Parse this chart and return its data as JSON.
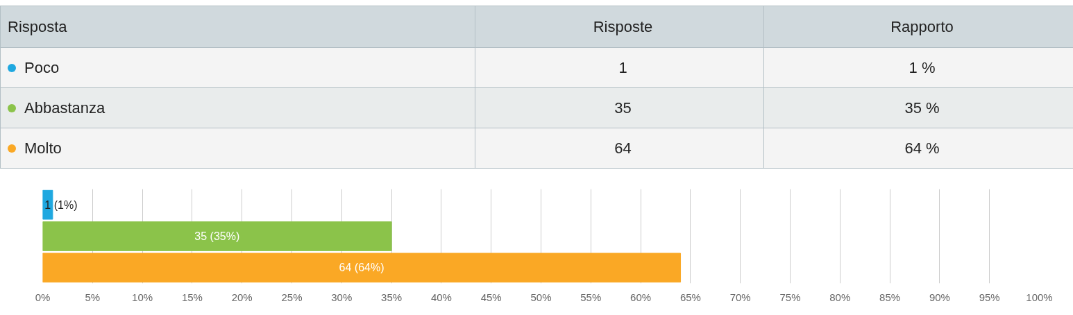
{
  "chart_data": {
    "type": "bar",
    "orientation": "horizontal",
    "categories": [
      null,
      null,
      null
    ],
    "values": [
      1,
      35,
      64
    ],
    "colors": [
      "#1fa8e0",
      "#8bc34a",
      "#faa825"
    ],
    "value_labels": [
      "1 (1%)",
      "35 (35%)",
      "64 (64%)"
    ],
    "xlim": [
      0,
      100
    ],
    "xticks": [
      {
        "value": 0,
        "label": "0%"
      },
      {
        "value": 5,
        "label": "5%"
      },
      {
        "value": 10,
        "label": "10%"
      },
      {
        "value": 15,
        "label": "15%"
      },
      {
        "value": 20,
        "label": "20%"
      },
      {
        "value": 25,
        "label": "25%"
      },
      {
        "value": 30,
        "label": "30%"
      },
      {
        "value": 35,
        "label": "35%"
      },
      {
        "value": 40,
        "label": "40%"
      },
      {
        "value": 45,
        "label": "45%"
      },
      {
        "value": 50,
        "label": "50%"
      },
      {
        "value": 55,
        "label": "55%"
      },
      {
        "value": 60,
        "label": "60%"
      },
      {
        "value": 65,
        "label": "65%"
      },
      {
        "value": 70,
        "label": "70%"
      },
      {
        "value": 75,
        "label": "75%"
      },
      {
        "value": 80,
        "label": "80%"
      },
      {
        "value": 85,
        "label": "85%"
      },
      {
        "value": 90,
        "label": "90%"
      },
      {
        "value": 95,
        "label": "95%"
      },
      {
        "value": 100,
        "label": "100%"
      }
    ],
    "grid": "x",
    "tick_labels": "x",
    "annotations": [
      "Risposta",
      "Risposte",
      "Rapporto",
      "Poco",
      "1",
      "1 %",
      "Abbastanza",
      "35",
      "35 %",
      "Molto",
      "64",
      "64 %"
    ]
  }
}
